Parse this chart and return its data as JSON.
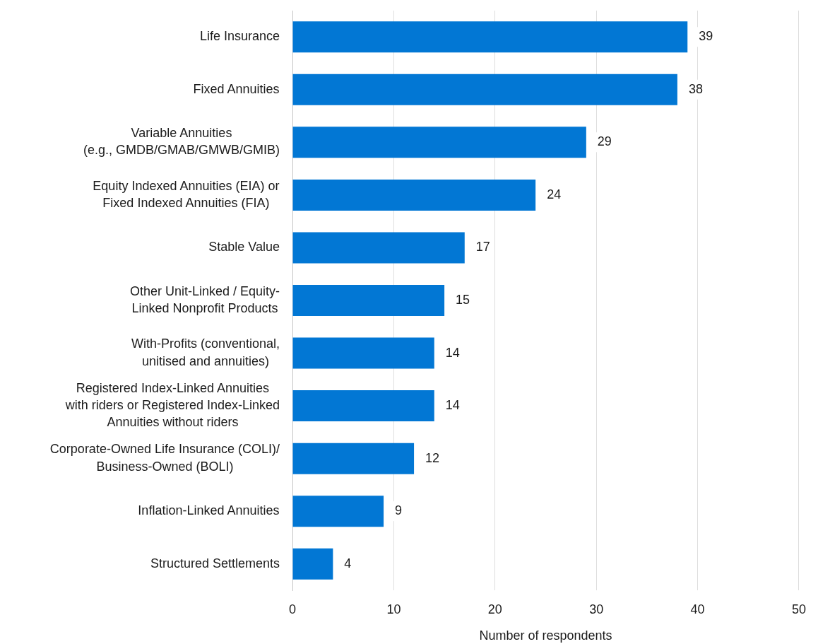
{
  "chart_data": {
    "type": "bar",
    "orientation": "horizontal",
    "categories": [
      "Life Insurance",
      "Fixed Annuities",
      "Variable Annuities\n(e.g., GMDB/GMAB/GMWB/GMIB)",
      "Equity Indexed Annuities (EIA) or\nFixed Indexed Annuities (FIA)",
      "Stable Value",
      "Other Unit-Linked / Equity-\nLinked Nonprofit Products",
      "With-Profits (conventional,\nunitised and annuities)",
      "Registered Index-Linked Annuities\nwith riders or Registered Index-Linked\nAnnuities without riders",
      "Corporate-Owned Life Insurance (COLI)/\nBusiness-Owned (BOLI)",
      "Inflation-Linked Annuities",
      "Structured Settlements"
    ],
    "values": [
      39,
      38,
      29,
      24,
      17,
      15,
      14,
      14,
      12,
      9,
      4
    ],
    "color": "#0277d4",
    "xlim": [
      0,
      50
    ],
    "xticks": [
      0,
      10,
      20,
      30,
      40,
      50
    ],
    "xlabel": "Number of respondents",
    "grid": "x",
    "data_labels": true
  }
}
